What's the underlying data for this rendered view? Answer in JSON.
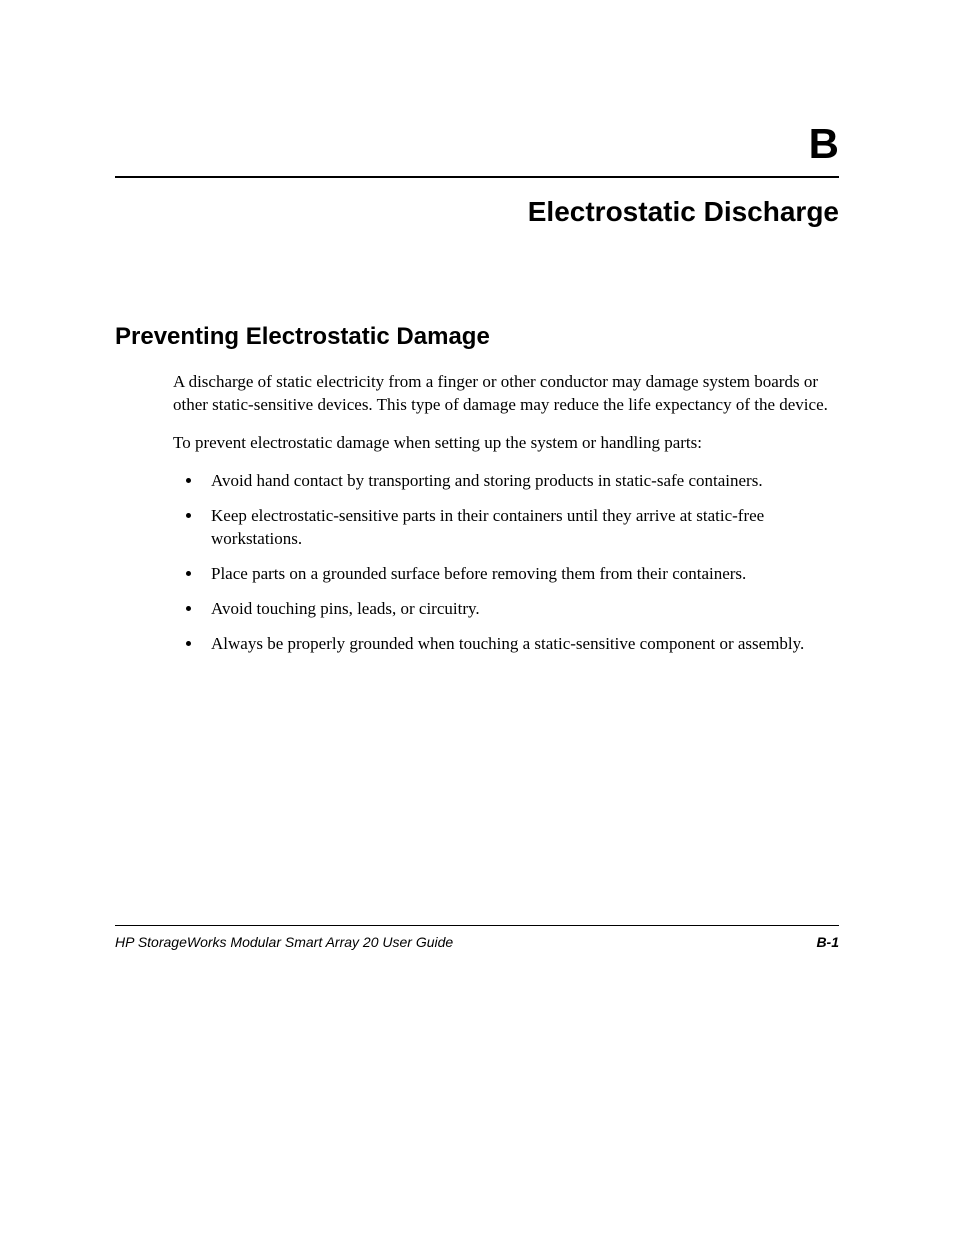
{
  "appendix": {
    "letter": "B",
    "title": "Electrostatic Discharge"
  },
  "section": {
    "heading": "Preventing Electrostatic Damage",
    "paragraph1": "A discharge of static electricity from a finger or other conductor may damage system boards or other static-sensitive devices. This type of damage may reduce the life expectancy of the device.",
    "paragraph2": "To prevent electrostatic damage when setting up the system or handling parts:",
    "bullets": [
      "Avoid hand contact by transporting and storing products in static-safe containers.",
      "Keep electrostatic-sensitive parts in their containers until they arrive at static-free workstations.",
      "Place parts on a grounded surface before removing them from their containers.",
      "Avoid touching pins, leads, or circuitry.",
      "Always be properly grounded when touching a static-sensitive component or assembly."
    ]
  },
  "footer": {
    "left": "HP StorageWorks Modular Smart Array 20 User Guide",
    "right": "B-1"
  },
  "colors": {
    "text": "#000000",
    "background": "#ffffff",
    "divider": "#000000"
  },
  "typography": {
    "appendix_letter_fontsize": 42,
    "appendix_title_fontsize": 28,
    "section_heading_fontsize": 24,
    "body_fontsize": 17,
    "footer_fontsize": 14,
    "heading_font": "Arial",
    "body_font": "Times New Roman"
  }
}
